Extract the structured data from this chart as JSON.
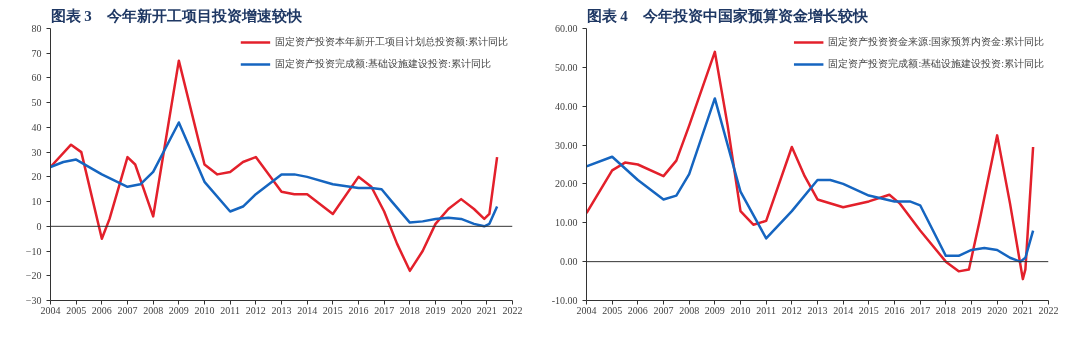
{
  "chart_data": [
    {
      "type": "line",
      "title": "图表 3　今年新开工项目投资增速较快",
      "xlim": [
        2004,
        2022
      ],
      "xticks": [
        2004,
        2005,
        2006,
        2007,
        2008,
        2009,
        2010,
        2011,
        2012,
        2013,
        2014,
        2015,
        2016,
        2017,
        2018,
        2019,
        2020,
        2021,
        2022
      ],
      "ylim": [
        -30,
        80
      ],
      "yticks": [
        -30,
        -20,
        -10,
        0,
        10,
        20,
        30,
        40,
        50,
        60,
        70,
        80
      ],
      "ref_lines": [
        {
          "axis": "y",
          "value": 0,
          "color": "#333333"
        }
      ],
      "grid": false,
      "legend": "top right",
      "line_style": "solid",
      "marker": "none",
      "series": [
        {
          "name": "固定资产投资本年新开工项目计划总投资额:累计同比",
          "color": "#e3202b",
          "x": [
            2004,
            2004.8,
            2005.2,
            2006,
            2006.3,
            2007,
            2007.3,
            2008,
            2009,
            2010,
            2010.5,
            2011,
            2011.5,
            2012,
            2013,
            2013.5,
            2014,
            2015,
            2016,
            2016.5,
            2017,
            2017.5,
            2018,
            2018.5,
            2019,
            2019.5,
            2020,
            2020.5,
            2020.9,
            2021.1,
            2021.4
          ],
          "values": [
            24,
            33,
            30,
            -5,
            3,
            28,
            25,
            4,
            67,
            25,
            21,
            22,
            26,
            28,
            14,
            13,
            13,
            5,
            20,
            16,
            6,
            -7,
            -18,
            -10,
            1,
            7,
            11,
            7,
            3,
            5,
            28
          ]
        },
        {
          "name": "固定资产投资完成额:基础设施建设投资:累计同比",
          "color": "#1565c0",
          "x": [
            2004,
            2004.5,
            2005,
            2006,
            2007,
            2007.5,
            2008,
            2009,
            2010,
            2011,
            2011.5,
            2012,
            2013,
            2013.5,
            2014,
            2015,
            2016,
            2016.5,
            2016.9,
            2017.3,
            2018,
            2018.5,
            2019,
            2019.5,
            2020,
            2020.5,
            2020.9,
            2021.1,
            2021.4
          ],
          "values": [
            24,
            26,
            27,
            21,
            16,
            17,
            22,
            42,
            18,
            6,
            8,
            13,
            21,
            21,
            20,
            17,
            15.5,
            15.5,
            15,
            10,
            1.5,
            2,
            3,
            3.5,
            3,
            1,
            0,
            1,
            8
          ]
        }
      ]
    },
    {
      "type": "line",
      "title": "图表 4　今年投资中国家预算资金增长较快",
      "xlim": [
        2004,
        2022
      ],
      "xticks": [
        2004,
        2005,
        2006,
        2007,
        2008,
        2009,
        2010,
        2011,
        2012,
        2013,
        2014,
        2015,
        2016,
        2017,
        2018,
        2019,
        2020,
        2021,
        2022
      ],
      "ylim": [
        -10,
        60
      ],
      "yticks": [
        {
          "value": -10,
          "label": "-10.00"
        },
        {
          "value": 0,
          "label": "0.00"
        },
        {
          "value": 10,
          "label": "10.00"
        },
        {
          "value": 20,
          "label": "20.00"
        },
        {
          "value": 30,
          "label": "30.00"
        },
        {
          "value": 40,
          "label": "40.00"
        },
        {
          "value": 50,
          "label": "50.00"
        },
        {
          "value": 60,
          "label": "60.00"
        }
      ],
      "ref_lines": [
        {
          "axis": "y",
          "value": 0,
          "color": "#333333"
        }
      ],
      "grid": false,
      "legend": "top right",
      "line_style": "solid",
      "marker": "none",
      "series": [
        {
          "name": "固定资产投资资金来源:国家预算内资金:累计同比",
          "color": "#e3202b",
          "x": [
            2004,
            2005,
            2005.5,
            2006,
            2007,
            2007.5,
            2008,
            2009,
            2009.5,
            2010,
            2010.5,
            2011,
            2012,
            2012.5,
            2013,
            2014,
            2015,
            2015.8,
            2016.2,
            2017,
            2018,
            2018.5,
            2018.9,
            2019.3,
            2020,
            2020.5,
            2021.0,
            2021.1,
            2021.4
          ],
          "values": [
            12.5,
            23.5,
            25.5,
            25,
            22,
            26,
            35,
            54,
            35,
            13,
            9.5,
            10.5,
            29.5,
            22,
            16,
            14,
            15.5,
            17.2,
            15,
            8,
            0,
            -2.5,
            -2,
            10,
            32.5,
            15,
            -4.5,
            -2,
            29.5
          ]
        },
        {
          "name": "固定资产投资完成额:基础设施建设投资:累计同比",
          "color": "#1565c0",
          "x": [
            2004,
            2005,
            2006,
            2007,
            2007.5,
            2008,
            2009,
            2010,
            2011,
            2012,
            2013,
            2013.5,
            2014,
            2015,
            2016,
            2016.6,
            2017,
            2018,
            2018.5,
            2019,
            2019.5,
            2020,
            2020.5,
            2020.9,
            2021.1,
            2021.4
          ],
          "values": [
            24.5,
            27,
            21,
            16,
            17,
            22.5,
            42,
            18,
            6,
            13,
            21,
            21,
            20,
            17,
            15.5,
            15.5,
            14.5,
            1.5,
            1.5,
            3,
            3.5,
            3,
            1,
            0,
            1,
            8
          ]
        }
      ]
    }
  ]
}
